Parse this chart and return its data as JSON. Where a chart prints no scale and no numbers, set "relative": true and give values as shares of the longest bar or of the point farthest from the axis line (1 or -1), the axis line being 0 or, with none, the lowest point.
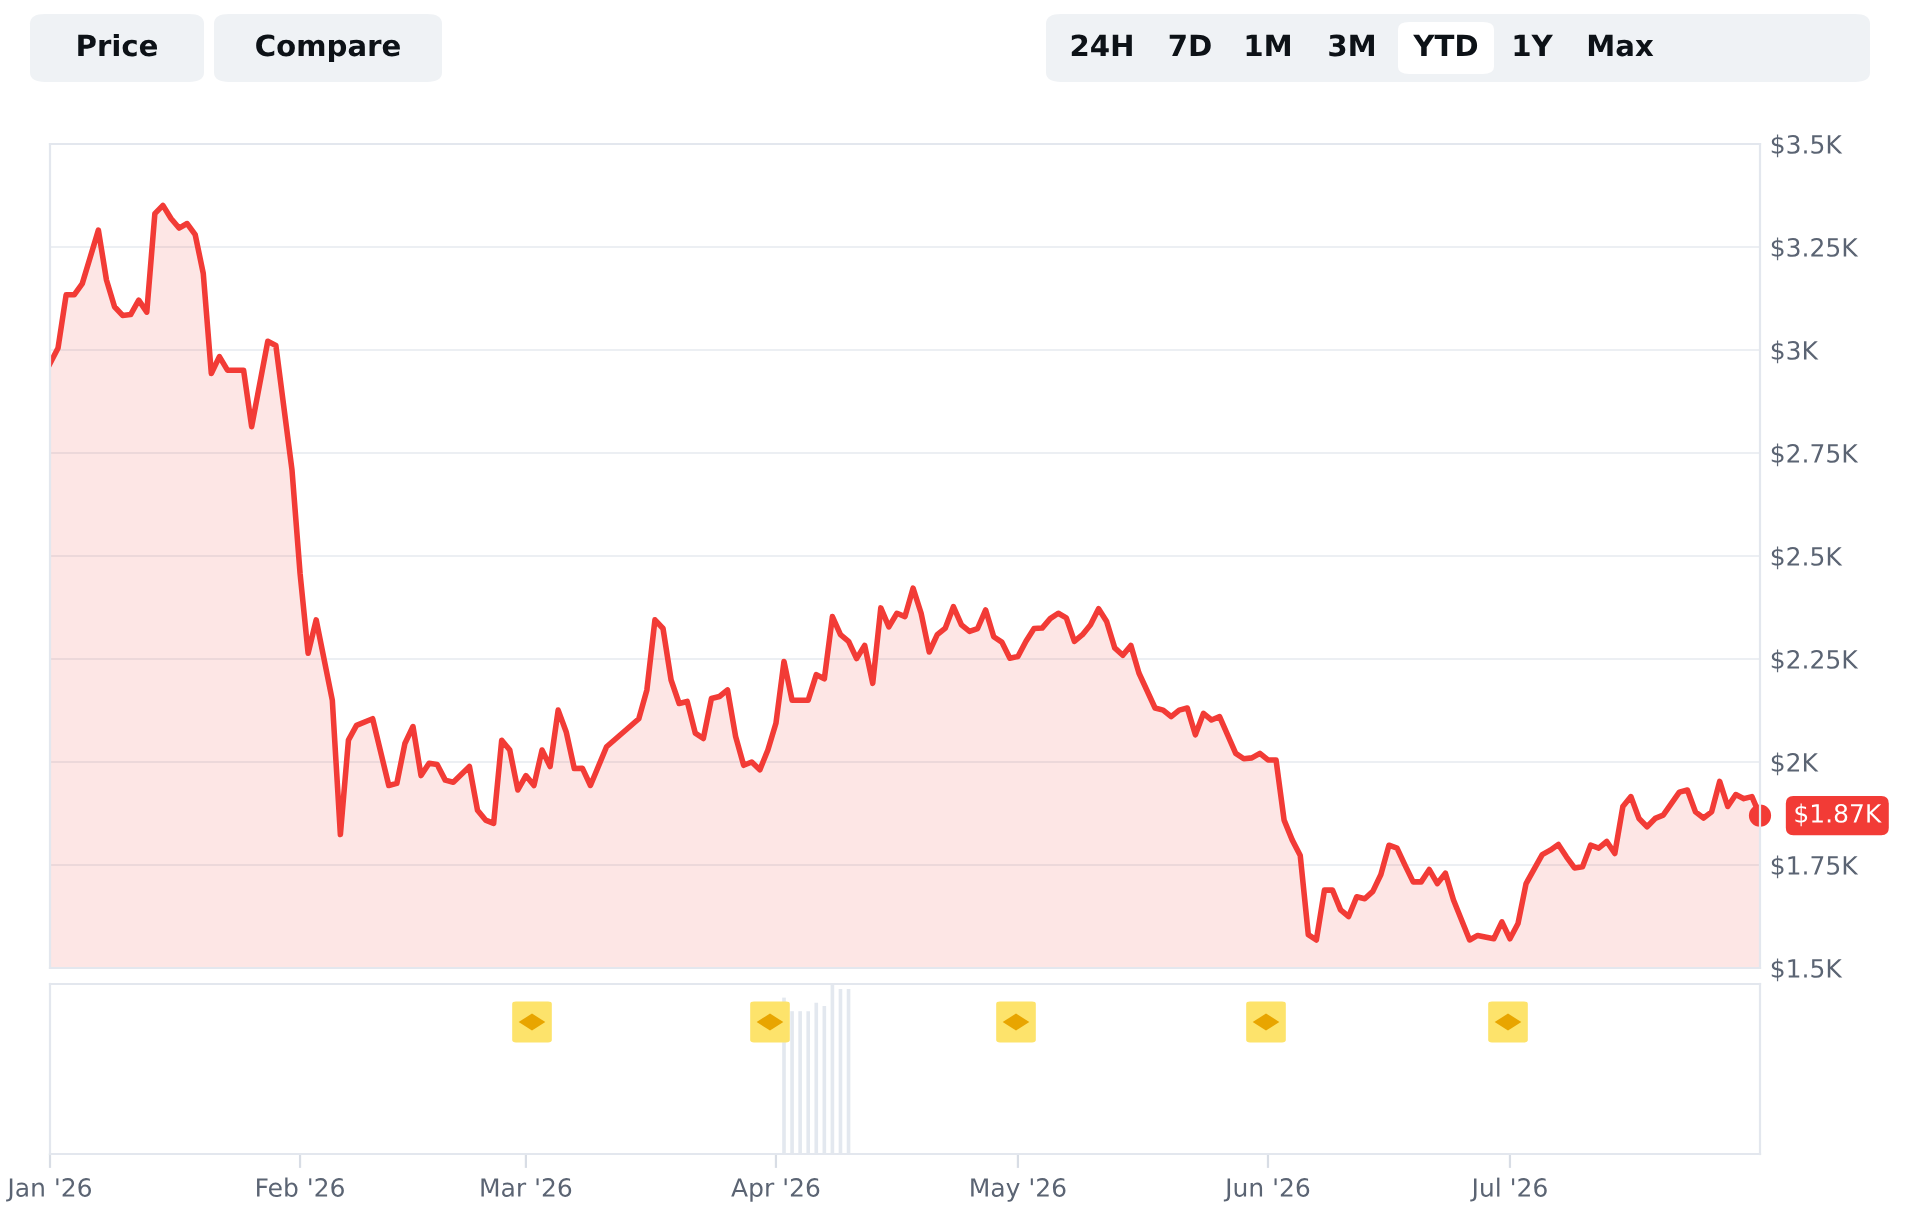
{
  "chart_data": [
    {
      "type": "area",
      "xlim": [
        "2026-01-01",
        "2026-08-01"
      ],
      "ylim": [
        1500,
        3500
      ],
      "yticks": [
        {
          "value": 1500,
          "label": "$1.5K"
        },
        {
          "value": 1750,
          "label": "$1.75K"
        },
        {
          "value": 2000,
          "label": "$2K"
        },
        {
          "value": 2250,
          "label": "$2.25K"
        },
        {
          "value": 2500,
          "label": "$2.5K"
        },
        {
          "value": 2750,
          "label": "$2.75K"
        },
        {
          "value": 3000,
          "label": "$3K"
        },
        {
          "value": 3250,
          "label": "$3.25K"
        },
        {
          "value": 3500,
          "label": "$3.5K"
        }
      ],
      "tick_labels": "y",
      "grid": "y",
      "legend": false,
      "x": [
        "2026-01-01",
        "2026-01-02",
        "2026-01-03",
        "2026-01-04",
        "2026-01-05",
        "2026-01-07",
        "2026-01-08",
        "2026-01-09",
        "2026-01-10",
        "2026-01-11",
        "2026-01-12",
        "2026-01-13",
        "2026-01-14",
        "2026-01-15",
        "2026-01-16",
        "2026-01-17",
        "2026-01-18",
        "2026-01-19",
        "2026-01-20",
        "2026-01-21",
        "2026-01-22",
        "2026-01-23",
        "2026-01-25",
        "2026-01-26",
        "2026-01-28",
        "2026-01-29",
        "2026-01-31",
        "2026-02-01",
        "2026-02-02",
        "2026-02-03",
        "2026-02-05",
        "2026-02-06",
        "2026-02-07",
        "2026-02-08",
        "2026-02-10",
        "2026-02-12",
        "2026-02-13",
        "2026-02-14",
        "2026-02-15",
        "2026-02-16",
        "2026-02-17",
        "2026-02-18",
        "2026-02-19",
        "2026-02-20",
        "2026-02-22",
        "2026-02-23",
        "2026-02-24",
        "2026-02-25",
        "2026-02-26",
        "2026-02-27",
        "2026-02-28",
        "2026-03-01",
        "2026-03-02",
        "2026-03-03",
        "2026-03-04",
        "2026-03-05",
        "2026-03-06",
        "2026-03-07",
        "2026-03-08",
        "2026-03-09",
        "2026-03-11",
        "2026-03-15",
        "2026-03-16",
        "2026-03-17",
        "2026-03-18",
        "2026-03-19",
        "2026-03-20",
        "2026-03-21",
        "2026-03-22",
        "2026-03-23",
        "2026-03-24",
        "2026-03-25",
        "2026-03-26",
        "2026-03-27",
        "2026-03-28",
        "2026-03-29",
        "2026-03-30",
        "2026-03-31",
        "2026-04-01",
        "2026-04-02",
        "2026-04-03",
        "2026-04-05",
        "2026-04-06",
        "2026-04-07",
        "2026-04-08",
        "2026-04-09",
        "2026-04-10",
        "2026-04-11",
        "2026-04-12",
        "2026-04-13",
        "2026-04-14",
        "2026-04-15",
        "2026-04-16",
        "2026-04-17",
        "2026-04-18",
        "2026-04-19",
        "2026-04-20",
        "2026-04-21",
        "2026-04-22",
        "2026-04-23",
        "2026-04-24",
        "2026-04-25",
        "2026-04-26",
        "2026-04-27",
        "2026-04-28",
        "2026-04-29",
        "2026-04-30",
        "2026-05-01",
        "2026-05-02",
        "2026-05-03",
        "2026-05-04",
        "2026-05-05",
        "2026-05-06",
        "2026-05-07",
        "2026-05-08",
        "2026-05-09",
        "2026-05-10",
        "2026-05-11",
        "2026-05-12",
        "2026-05-13",
        "2026-05-14",
        "2026-05-15",
        "2026-05-16",
        "2026-05-18",
        "2026-05-19",
        "2026-05-20",
        "2026-05-21",
        "2026-05-22",
        "2026-05-23",
        "2026-05-24",
        "2026-05-25",
        "2026-05-26",
        "2026-05-28",
        "2026-05-29",
        "2026-05-30",
        "2026-05-31",
        "2026-06-01",
        "2026-06-02",
        "2026-06-03",
        "2026-06-04",
        "2026-06-05",
        "2026-06-06",
        "2026-06-07",
        "2026-06-08",
        "2026-06-09",
        "2026-06-10",
        "2026-06-11",
        "2026-06-12",
        "2026-06-13",
        "2026-06-14",
        "2026-06-15",
        "2026-06-16",
        "2026-06-17",
        "2026-06-18",
        "2026-06-19",
        "2026-06-20",
        "2026-06-21",
        "2026-06-22",
        "2026-06-23",
        "2026-06-24",
        "2026-06-26",
        "2026-06-27",
        "2026-06-29",
        "2026-06-30",
        "2026-07-01",
        "2026-07-02",
        "2026-07-03",
        "2026-07-05",
        "2026-07-06",
        "2026-07-07",
        "2026-07-08",
        "2026-07-09",
        "2026-07-10",
        "2026-07-11",
        "2026-07-12",
        "2026-07-13",
        "2026-07-14",
        "2026-07-15",
        "2026-07-16",
        "2026-07-17",
        "2026-07-18",
        "2026-07-19",
        "2026-07-20",
        "2026-07-22",
        "2026-07-23",
        "2026-07-24",
        "2026-07-25",
        "2026-07-26",
        "2026-07-27",
        "2026-07-28",
        "2026-07-29",
        "2026-07-30",
        "2026-07-31",
        "2026-08-01"
      ],
      "series": [
        {
          "color": "#f23b36",
          "values": [
            2967,
            3005,
            3134,
            3134,
            3161,
            3291,
            3170,
            3105,
            3084,
            3086,
            3121,
            3092,
            3331,
            3351,
            3319,
            3296,
            3307,
            3280,
            3186,
            2943,
            2984,
            2951,
            2951,
            2814,
            3021,
            3011,
            2709,
            2458,
            2264,
            2345,
            2150,
            1824,
            2053,
            2089,
            2105,
            1943,
            1948,
            2045,
            2086,
            1967,
            1997,
            1994,
            1956,
            1951,
            1989,
            1883,
            1859,
            1851,
            2053,
            2029,
            1932,
            1967,
            1943,
            2029,
            1989,
            2126,
            2073,
            1984,
            1985,
            1943,
            2037,
            2105,
            2175,
            2345,
            2324,
            2199,
            2142,
            2147,
            2070,
            2057,
            2154,
            2159,
            2175,
            2062,
            1992,
            2000,
            1981,
            2029,
            2094,
            2244,
            2150,
            2150,
            2212,
            2202,
            2353,
            2309,
            2293,
            2251,
            2283,
            2191,
            2374,
            2328,
            2361,
            2353,
            2422,
            2361,
            2267,
            2309,
            2325,
            2377,
            2333,
            2317,
            2324,
            2369,
            2304,
            2291,
            2252,
            2256,
            2293,
            2324,
            2325,
            2348,
            2361,
            2350,
            2293,
            2309,
            2333,
            2372,
            2341,
            2277,
            2259,
            2283,
            2216,
            2131,
            2126,
            2110,
            2126,
            2131,
            2066,
            2118,
            2102,
            2110,
            2021,
            2008,
            2010,
            2021,
            2005,
            2005,
            1859,
            1811,
            1773,
            1581,
            1568,
            1689,
            1689,
            1641,
            1625,
            1673,
            1668,
            1686,
            1727,
            1798,
            1791,
            1749,
            1709,
            1709,
            1739,
            1705,
            1730,
            1665,
            1568,
            1579,
            1571,
            1612,
            1571,
            1608,
            1705,
            1775,
            1786,
            1800,
            1770,
            1743,
            1746,
            1798,
            1791,
            1807,
            1778,
            1892,
            1916,
            1863,
            1843,
            1863,
            1871,
            1927,
            1932,
            1879,
            1864,
            1879,
            1953,
            1892,
            1921,
            1911,
            1916,
            1870
          ]
        }
      ],
      "annotations": [
        "Price",
        "Compare",
        "24H",
        "7D",
        "1M",
        "3M",
        "YTD",
        "1Y",
        "Max",
        {
          "text": "$1.87K",
          "x": "2026-08-01",
          "y": 1870
        }
      ]
    },
    {
      "type": "bar",
      "relative": true,
      "xlim": [
        "2026-01-01",
        "2026-08-01"
      ],
      "tick_labels": "x",
      "legend": false,
      "xticks": [
        {
          "value": "2026-01-01",
          "label": "Jan '26"
        },
        {
          "value": "2026-02-01",
          "label": "Feb '26"
        },
        {
          "value": "2026-03-01",
          "label": "Mar '26"
        },
        {
          "value": "2026-04-01",
          "label": "Apr '26"
        },
        {
          "value": "2026-05-01",
          "label": "May '26"
        },
        {
          "value": "2026-06-01",
          "label": "Jun '26"
        },
        {
          "value": "2026-07-01",
          "label": "Jul '26"
        }
      ],
      "x": [
        "2026-04-02",
        "2026-04-03",
        "2026-04-04",
        "2026-04-05",
        "2026-04-06",
        "2026-04-07",
        "2026-04-08",
        "2026-04-09",
        "2026-04-10"
      ],
      "series": [
        {
          "color": "#e3e8ef",
          "values": [
            0.92,
            0.84,
            0.84,
            0.84,
            0.89,
            0.87,
            1,
            0.97,
            0.97
          ]
        }
      ]
    }
  ]
}
